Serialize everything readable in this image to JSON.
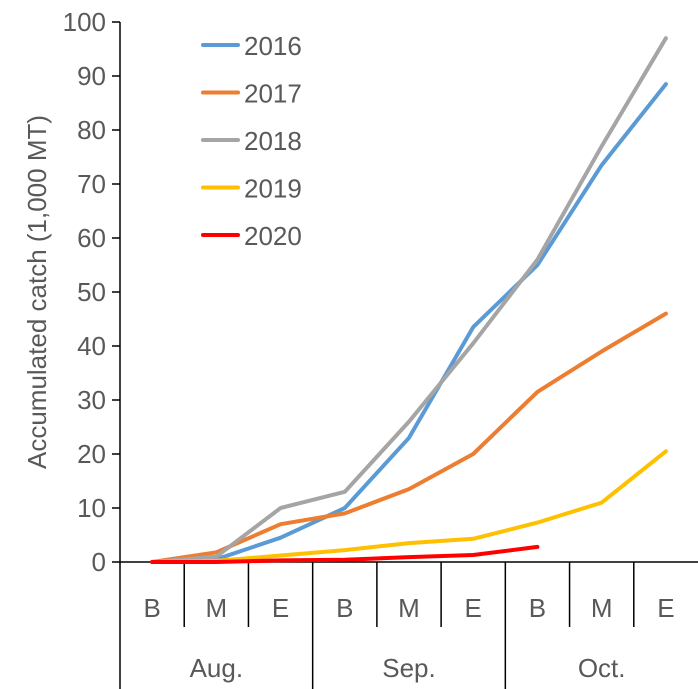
{
  "chart_data": {
    "type": "line",
    "ylabel": "Accumulated catch (1,000 MT)",
    "ylim": [
      0,
      100
    ],
    "yticks": [
      0,
      10,
      20,
      30,
      40,
      50,
      60,
      70,
      80,
      90,
      100
    ],
    "categories": [
      "B",
      "M",
      "E",
      "B",
      "M",
      "E",
      "B",
      "M",
      "E"
    ],
    "groups": [
      {
        "label": "Aug.",
        "span": 3
      },
      {
        "label": "Sep.",
        "span": 3
      },
      {
        "label": "Oct.",
        "span": 3
      }
    ],
    "legend_position": "top-left",
    "grid": false,
    "series": [
      {
        "name": "2016",
        "color": "#5B9BD5",
        "values": [
          0,
          0.5,
          4.5,
          10,
          23,
          43.5,
          55,
          73.5,
          88.5
        ]
      },
      {
        "name": "2017",
        "color": "#ED7D31",
        "values": [
          0,
          1.8,
          7,
          9,
          13.5,
          20,
          31.5,
          39,
          46
        ]
      },
      {
        "name": "2018",
        "color": "#A5A5A5",
        "values": [
          0,
          1,
          10,
          13,
          26,
          40.5,
          56,
          77,
          97
        ]
      },
      {
        "name": "2019",
        "color": "#FFC000",
        "values": [
          0,
          0.2,
          1.2,
          2.2,
          3.5,
          4.3,
          7.3,
          11,
          20.5
        ]
      },
      {
        "name": "2020",
        "color": "#FF0000",
        "values": [
          0,
          0,
          0.3,
          0.4,
          0.9,
          1.3,
          2.8,
          null,
          null
        ]
      }
    ]
  }
}
